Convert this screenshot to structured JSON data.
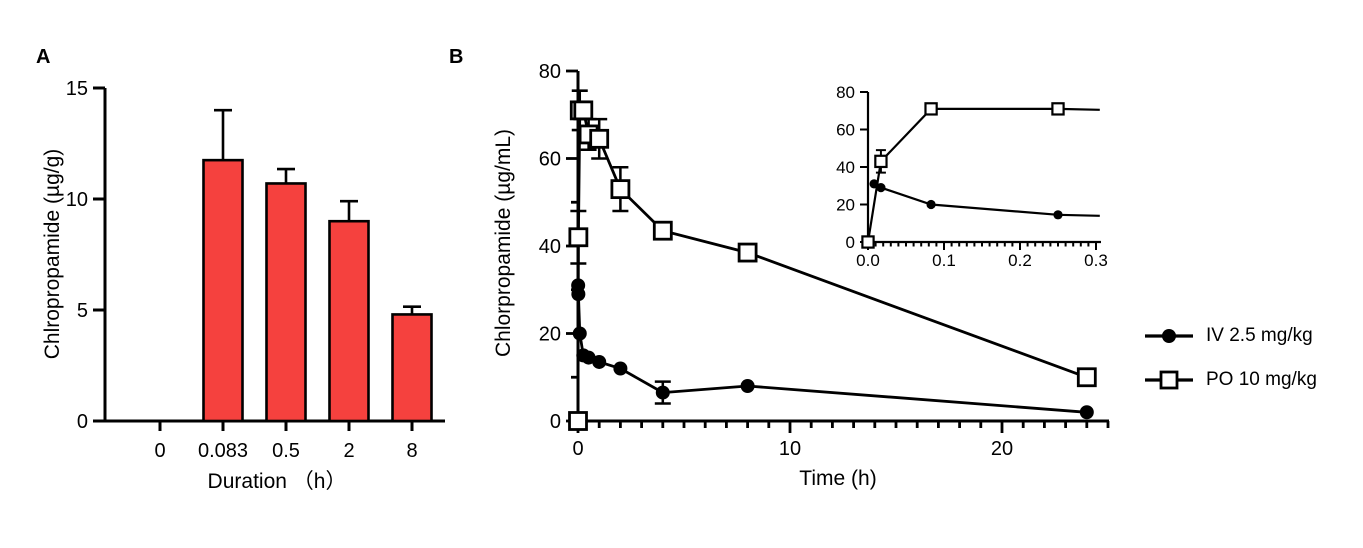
{
  "figure": {
    "background": "#ffffff"
  },
  "panel_a": {
    "label": "A",
    "ylabel": "Chlropropamide (µg/g)",
    "xlabel": "Duration （h）"
  },
  "panel_b": {
    "label": "B",
    "ylabel": "Chlorpropamide (µg/mL)",
    "xlabel": "Time (h)"
  },
  "legend": {
    "items": [
      {
        "marker": "filled-circle",
        "label": "IV 2.5 mg/kg"
      },
      {
        "marker": "open-square",
        "label": "PO 10 mg/kg"
      }
    ]
  },
  "chart_data": [
    {
      "id": "panel-a",
      "type": "bar",
      "title": "",
      "xlabel": "Duration （h）",
      "ylabel": "Chlropropamide (µg/g)",
      "categories": [
        "0",
        "0.083",
        "0.5",
        "2",
        "8"
      ],
      "values": [
        0,
        11.75,
        10.7,
        9.0,
        4.8
      ],
      "errors_sd": [
        0,
        2.25,
        0.65,
        0.9,
        0.35
      ],
      "ylim": [
        0,
        15
      ],
      "yticks": [
        0,
        5,
        10,
        15
      ],
      "bar_color": "#F5413E",
      "grid": false
    },
    {
      "id": "panel-b-main",
      "type": "line",
      "title": "",
      "xlabel": "Time (h)",
      "ylabel": "Chlorpropamide (µg/mL)",
      "xlim": [
        0,
        25
      ],
      "ylim": [
        0,
        80
      ],
      "xticks": [
        0,
        10,
        20
      ],
      "x_minor_interval": 1,
      "yticks": [
        0,
        20,
        40,
        60,
        80
      ],
      "y_minor_interval": 10,
      "grid": false,
      "legend_position": "right-outside",
      "series": [
        {
          "name": "PO 10 mg/kg",
          "marker": "open-square",
          "x": [
            0,
            0.017,
            0.083,
            0.25,
            0.5,
            1,
            2,
            4,
            8,
            24
          ],
          "y": [
            0,
            42,
            71,
            71,
            65.5,
            64.5,
            53,
            43.5,
            38.5,
            10
          ],
          "err": [
            0,
            6,
            4.5,
            0,
            3.5,
            4.5,
            5,
            0,
            0,
            0
          ]
        },
        {
          "name": "IV 2.5 mg/kg",
          "marker": "filled-circle",
          "x": [
            0.008,
            0.017,
            0.083,
            0.25,
            0.5,
            1,
            2,
            4,
            8,
            24
          ],
          "y": [
            31,
            29,
            20,
            15,
            14.5,
            13.5,
            12,
            6.5,
            8,
            2
          ],
          "err": [
            0,
            0,
            0,
            0,
            0,
            0,
            0,
            2.5,
            0,
            0
          ]
        }
      ]
    },
    {
      "id": "panel-b-inset",
      "type": "line",
      "title": "",
      "xlabel": "",
      "ylabel": "",
      "xlim": [
        0,
        0.3
      ],
      "ylim": [
        0,
        80
      ],
      "xticks": [
        0,
        0.1,
        0.2,
        0.3
      ],
      "xtick_labels": [
        "0.0",
        "0.1",
        "0.2",
        "0.3"
      ],
      "x_minor_interval": 0.01,
      "yticks": [
        0,
        20,
        40,
        60,
        80
      ],
      "grid": false,
      "series": [
        {
          "name": "PO 10 mg/kg",
          "marker": "open-square",
          "x": [
            0,
            0.017,
            0.083,
            0.25
          ],
          "y": [
            0,
            43,
            71,
            71
          ],
          "err": [
            0,
            6,
            0,
            0
          ],
          "line_extension": {
            "x": 0.305,
            "y": 70.5
          }
        },
        {
          "name": "IV 2.5 mg/kg",
          "marker": "filled-circle",
          "x": [
            0.008,
            0.017,
            0.083,
            0.25
          ],
          "y": [
            31,
            29,
            20,
            14.5
          ],
          "err": [
            0,
            0,
            0,
            0
          ],
          "line_extension": {
            "x": 0.305,
            "y": 14
          }
        }
      ]
    }
  ]
}
